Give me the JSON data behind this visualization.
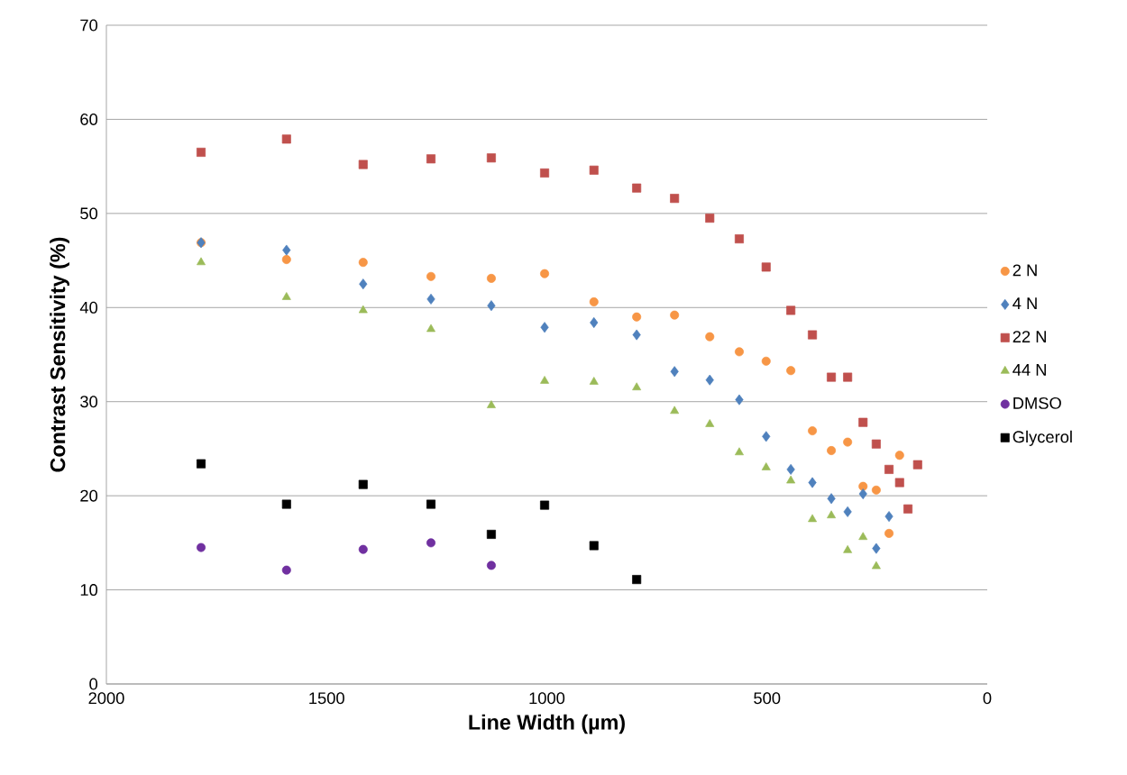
{
  "chart_data": {
    "type": "scatter",
    "xlabel": "Line Width (µm)",
    "ylabel": "Contrast Sensitivity (%)",
    "xlim": [
      2000,
      0
    ],
    "xticks": [
      2000,
      1500,
      1000,
      500,
      0
    ],
    "ylim": [
      0,
      70
    ],
    "yticks": [
      0,
      10,
      20,
      30,
      40,
      50,
      60,
      70
    ],
    "grid": "y",
    "legend": "right",
    "series": [
      {
        "name": "2 N",
        "color": "#f79646",
        "marker": "circle",
        "x": [
          1785,
          1591,
          1417,
          1263,
          1126,
          1005,
          893,
          796,
          710,
          630,
          563,
          502,
          446,
          397,
          354,
          317,
          282,
          252,
          223,
          199
        ],
        "values": [
          46.9,
          45.1,
          44.8,
          43.3,
          43.1,
          43.6,
          40.6,
          39.0,
          39.2,
          36.9,
          35.3,
          34.3,
          33.3,
          26.9,
          24.8,
          25.7,
          21.0,
          20.6,
          16.0,
          24.3
        ]
      },
      {
        "name": "4 N",
        "color": "#4f81bd",
        "marker": "diamond",
        "x": [
          1785,
          1591,
          1417,
          1263,
          1126,
          1005,
          893,
          796,
          710,
          630,
          563,
          502,
          446,
          397,
          354,
          317,
          282,
          252,
          223
        ],
        "values": [
          46.9,
          46.1,
          42.5,
          40.9,
          40.2,
          37.9,
          38.4,
          37.1,
          33.2,
          32.3,
          30.2,
          26.3,
          22.8,
          21.4,
          19.7,
          18.3,
          20.2,
          14.4,
          17.8
        ]
      },
      {
        "name": "22 N",
        "color": "#c0504d",
        "marker": "square",
        "x": [
          1785,
          1591,
          1417,
          1263,
          1126,
          1005,
          893,
          796,
          710,
          630,
          563,
          502,
          446,
          397,
          354,
          317,
          282,
          252,
          223,
          199,
          180,
          158
        ],
        "values": [
          56.5,
          57.9,
          55.2,
          55.8,
          55.9,
          54.3,
          54.6,
          52.7,
          51.6,
          49.5,
          47.3,
          44.3,
          39.7,
          37.1,
          32.6,
          32.6,
          27.8,
          25.5,
          22.8,
          21.4,
          18.6,
          23.3
        ]
      },
      {
        "name": "44 N",
        "color": "#9bbb59",
        "marker": "triangle",
        "x": [
          1785,
          1591,
          1417,
          1263,
          1126,
          1005,
          893,
          796,
          710,
          630,
          563,
          502,
          446,
          397,
          354,
          317,
          282,
          252
        ],
        "values": [
          44.8,
          41.1,
          39.7,
          37.7,
          29.6,
          32.2,
          32.1,
          31.5,
          29.0,
          27.6,
          24.6,
          23.0,
          21.6,
          17.5,
          17.9,
          14.2,
          15.6,
          12.5
        ]
      },
      {
        "name": "DMSO",
        "color": "#7030a0",
        "marker": "circle",
        "x": [
          1785,
          1591,
          1417,
          1263,
          1126
        ],
        "values": [
          14.5,
          12.1,
          14.3,
          15.0,
          12.6
        ]
      },
      {
        "name": "Glycerol",
        "color": "#000000",
        "marker": "square",
        "x": [
          1785,
          1591,
          1417,
          1263,
          1126,
          1005,
          893,
          796
        ],
        "values": [
          23.4,
          19.1,
          21.2,
          19.1,
          15.9,
          19.0,
          14.7,
          11.1
        ]
      }
    ]
  }
}
